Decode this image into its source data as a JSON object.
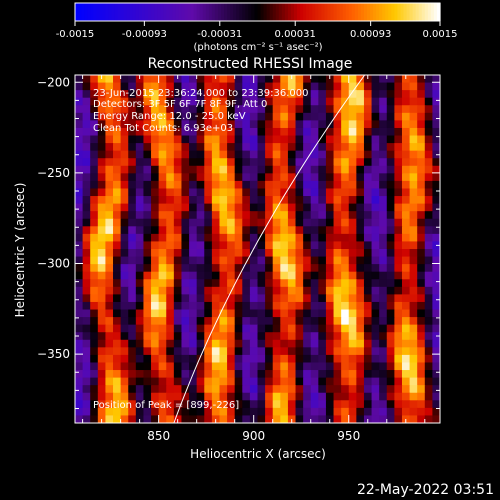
{
  "chart_data": {
    "type": "heatmap",
    "title": "Reconstructed RHESSI Image",
    "xlabel": "Heliocentric X (arcsec)",
    "ylabel": "Heliocentric Y (arcsec)",
    "xlim": [
      806,
      998
    ],
    "ylim": [
      -388,
      -196
    ],
    "x_ticks": [
      850,
      900,
      950
    ],
    "y_ticks": [
      -200,
      -250,
      -300,
      -350
    ],
    "colorbar": {
      "range": [
        -0.0015,
        0.0015
      ],
      "ticks": [
        "-0.0015",
        "-0.00093",
        "-0.00031",
        "0.00031",
        "0.00093",
        "0.0015"
      ],
      "label": "(photons cm⁻² s⁻¹ asec⁻²)"
    },
    "annotations": [
      "23-Jun-2015 23:36:24.000 to 23:39:36.000",
      "Detectors: 3F 5F 6F 7F 8F 9F, Att 0",
      "Energy Range: 12.0 - 25.0 keV",
      "Clean    Tot Counts: 6.93e+03"
    ],
    "peak_label": "Position of Peak = [899,-226]",
    "peak": [
      899,
      -226
    ],
    "bright_stripes_x": [
      823,
      852,
      884,
      916,
      948,
      982
    ],
    "dark_stripes_x": [
      808,
      838,
      868,
      900,
      932,
      966,
      996
    ]
  },
  "timestamp": "22-May-2022 03:51"
}
